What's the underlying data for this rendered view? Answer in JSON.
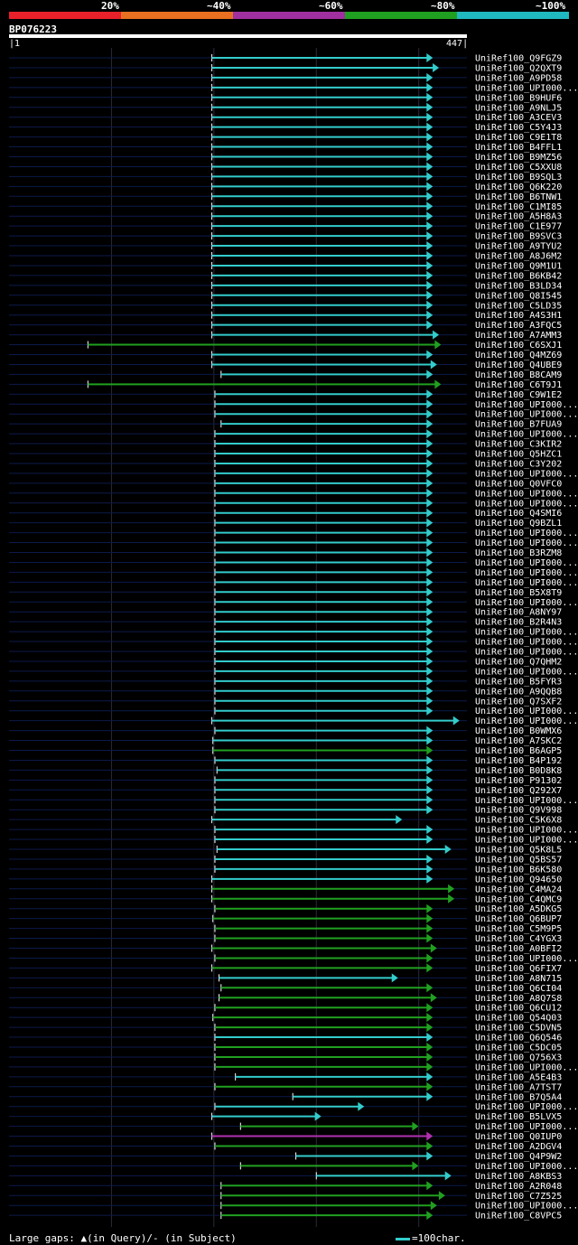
{
  "legend": {
    "labels": [
      "20%",
      "~40%",
      "~60%",
      "~80%",
      "~100%"
    ],
    "colors": [
      "#e8202a",
      "#e87020",
      "#a030a0",
      "#20a020",
      "#20b8c0"
    ]
  },
  "query": {
    "name": "BP076223",
    "start": "1",
    "end": "447"
  },
  "footer": {
    "large_gaps_prefix": "Large gaps:",
    "query_marker": "▲",
    "in_query": "(in Query)/",
    "subject_marker": "-",
    "in_subject": "(in Subject)",
    "scale_note": "=100char."
  },
  "chart_data": {
    "type": "alignment-overview",
    "query_length": 447,
    "gridlines": [
      100,
      200,
      300,
      400
    ],
    "legend": [
      "20%",
      "~40%",
      "~60%",
      "~80%",
      "~100%"
    ],
    "hits": [
      {
        "name": "UniRef100_Q9FGZ9",
        "start": 198,
        "end": 412,
        "color": "cyan"
      },
      {
        "name": "UniRef100_Q2QXT9",
        "start": 198,
        "end": 418,
        "color": "cyan"
      },
      {
        "name": "UniRef100_A9PD58",
        "start": 198,
        "end": 412,
        "color": "cyan"
      },
      {
        "name": "UniRef100_UPI000...",
        "start": 198,
        "end": 412,
        "color": "cyan"
      },
      {
        "name": "UniRef100_B9HUF6",
        "start": 198,
        "end": 412,
        "color": "cyan"
      },
      {
        "name": "UniRef100_A9NLJ5",
        "start": 198,
        "end": 412,
        "color": "cyan"
      },
      {
        "name": "UniRef100_A3CEV3",
        "start": 198,
        "end": 412,
        "color": "cyan"
      },
      {
        "name": "UniRef100_C5Y4J3",
        "start": 198,
        "end": 412,
        "color": "cyan"
      },
      {
        "name": "UniRef100_C9E1T8",
        "start": 198,
        "end": 412,
        "color": "cyan"
      },
      {
        "name": "UniRef100_B4FFL1",
        "start": 198,
        "end": 412,
        "color": "cyan"
      },
      {
        "name": "UniRef100_B9MZ56",
        "start": 198,
        "end": 412,
        "color": "cyan"
      },
      {
        "name": "UniRef100_C5XXU8",
        "start": 198,
        "end": 412,
        "color": "cyan"
      },
      {
        "name": "UniRef100_B9SQL3",
        "start": 198,
        "end": 412,
        "color": "cyan"
      },
      {
        "name": "UniRef100_Q6K220",
        "start": 198,
        "end": 412,
        "color": "cyan"
      },
      {
        "name": "UniRef100_B6TNW1",
        "start": 198,
        "end": 412,
        "color": "cyan"
      },
      {
        "name": "UniRef100_C1MI85",
        "start": 198,
        "end": 412,
        "color": "cyan"
      },
      {
        "name": "UniRef100_A5H8A3",
        "start": 198,
        "end": 412,
        "color": "cyan"
      },
      {
        "name": "UniRef100_C1E977",
        "start": 198,
        "end": 412,
        "color": "cyan"
      },
      {
        "name": "UniRef100_B9SVC3",
        "start": 198,
        "end": 412,
        "color": "cyan"
      },
      {
        "name": "UniRef100_A9TYU2",
        "start": 198,
        "end": 412,
        "color": "cyan"
      },
      {
        "name": "UniRef100_A8J6M2",
        "start": 198,
        "end": 412,
        "color": "cyan"
      },
      {
        "name": "UniRef100_Q9M1U1",
        "start": 198,
        "end": 412,
        "color": "cyan"
      },
      {
        "name": "UniRef100_B6KB42",
        "start": 198,
        "end": 412,
        "color": "cyan"
      },
      {
        "name": "UniRef100_B3LD34",
        "start": 198,
        "end": 412,
        "color": "cyan"
      },
      {
        "name": "UniRef100_Q8I545",
        "start": 198,
        "end": 412,
        "color": "cyan"
      },
      {
        "name": "UniRef100_C5LD35",
        "start": 198,
        "end": 412,
        "color": "cyan"
      },
      {
        "name": "UniRef100_A4S3H1",
        "start": 198,
        "end": 412,
        "color": "cyan"
      },
      {
        "name": "UniRef100_A3FQC5",
        "start": 198,
        "end": 412,
        "color": "cyan"
      },
      {
        "name": "UniRef100_A7AMM3",
        "start": 198,
        "end": 418,
        "color": "cyan"
      },
      {
        "name": "UniRef100_C6SXJ1",
        "start": 77,
        "end": 420,
        "color": "green"
      },
      {
        "name": "UniRef100_Q4MZ69",
        "start": 198,
        "end": 412,
        "color": "cyan"
      },
      {
        "name": "UniRef100_Q4UBE9",
        "start": 198,
        "end": 416,
        "color": "cyan"
      },
      {
        "name": "UniRef100_B8CAM9",
        "start": 207,
        "end": 412,
        "color": "cyan"
      },
      {
        "name": "UniRef100_C6T9J1",
        "start": 77,
        "end": 420,
        "color": "green"
      },
      {
        "name": "UniRef100_C9W1E2",
        "start": 201,
        "end": 412,
        "color": "cyan"
      },
      {
        "name": "UniRef100_UPI000...",
        "start": 201,
        "end": 412,
        "color": "cyan"
      },
      {
        "name": "UniRef100_UPI000...",
        "start": 201,
        "end": 412,
        "color": "cyan"
      },
      {
        "name": "UniRef100_B7FUA9",
        "start": 207,
        "end": 412,
        "color": "cyan"
      },
      {
        "name": "UniRef100_UPI000...",
        "start": 201,
        "end": 412,
        "color": "cyan"
      },
      {
        "name": "UniRef100_C3KIR2",
        "start": 201,
        "end": 412,
        "color": "cyan"
      },
      {
        "name": "UniRef100_Q5HZC1",
        "start": 201,
        "end": 412,
        "color": "cyan"
      },
      {
        "name": "UniRef100_C3Y202",
        "start": 201,
        "end": 412,
        "color": "cyan"
      },
      {
        "name": "UniRef100_UPI000...",
        "start": 201,
        "end": 412,
        "color": "cyan"
      },
      {
        "name": "UniRef100_Q0VFC0",
        "start": 201,
        "end": 412,
        "color": "cyan"
      },
      {
        "name": "UniRef100_UPI000...",
        "start": 201,
        "end": 412,
        "color": "cyan"
      },
      {
        "name": "UniRef100_UPI000...",
        "start": 201,
        "end": 412,
        "color": "cyan"
      },
      {
        "name": "UniRef100_Q4SMI6",
        "start": 201,
        "end": 412,
        "color": "cyan"
      },
      {
        "name": "UniRef100_Q9BZL1",
        "start": 201,
        "end": 412,
        "color": "cyan"
      },
      {
        "name": "UniRef100_UPI000...",
        "start": 201,
        "end": 412,
        "color": "cyan"
      },
      {
        "name": "UniRef100_UPI000...",
        "start": 201,
        "end": 412,
        "color": "cyan"
      },
      {
        "name": "UniRef100_B3RZM8",
        "start": 201,
        "end": 412,
        "color": "cyan"
      },
      {
        "name": "UniRef100_UPI000...",
        "start": 201,
        "end": 412,
        "color": "cyan"
      },
      {
        "name": "UniRef100_UPI000...",
        "start": 201,
        "end": 412,
        "color": "cyan"
      },
      {
        "name": "UniRef100_UPI000...",
        "start": 201,
        "end": 412,
        "color": "cyan"
      },
      {
        "name": "UniRef100_B5X8T9",
        "start": 201,
        "end": 412,
        "color": "cyan"
      },
      {
        "name": "UniRef100_UPI000...",
        "start": 201,
        "end": 412,
        "color": "cyan"
      },
      {
        "name": "UniRef100_A8NY97",
        "start": 201,
        "end": 412,
        "color": "cyan"
      },
      {
        "name": "UniRef100_B2R4N3",
        "start": 201,
        "end": 412,
        "color": "cyan"
      },
      {
        "name": "UniRef100_UPI000...",
        "start": 201,
        "end": 412,
        "color": "cyan"
      },
      {
        "name": "UniRef100_UPI000...",
        "start": 201,
        "end": 412,
        "color": "cyan"
      },
      {
        "name": "UniRef100_UPI000...",
        "start": 201,
        "end": 412,
        "color": "cyan"
      },
      {
        "name": "UniRef100_Q7QHM2",
        "start": 201,
        "end": 412,
        "color": "cyan"
      },
      {
        "name": "UniRef100_UPI000...",
        "start": 201,
        "end": 412,
        "color": "cyan"
      },
      {
        "name": "UniRef100_B5FYR3",
        "start": 201,
        "end": 412,
        "color": "cyan"
      },
      {
        "name": "UniRef100_A9QQB8",
        "start": 201,
        "end": 412,
        "color": "cyan"
      },
      {
        "name": "UniRef100_Q7SXF2",
        "start": 201,
        "end": 412,
        "color": "cyan"
      },
      {
        "name": "UniRef100_UPI000...",
        "start": 201,
        "end": 412,
        "color": "cyan"
      },
      {
        "name": "UniRef100_UPI000...",
        "start": 198,
        "end": 438,
        "color": "cyan"
      },
      {
        "name": "UniRef100_B0WMX6",
        "start": 201,
        "end": 412,
        "color": "cyan"
      },
      {
        "name": "UniRef100_A7SKC2",
        "start": 199,
        "end": 412,
        "color": "cyan"
      },
      {
        "name": "UniRef100_B6AGP5",
        "start": 199,
        "end": 412,
        "color": "green"
      },
      {
        "name": "UniRef100_B4P192",
        "start": 201,
        "end": 412,
        "color": "cyan"
      },
      {
        "name": "UniRef100_B0D8K8",
        "start": 203,
        "end": 412,
        "color": "cyan"
      },
      {
        "name": "UniRef100_P91302",
        "start": 201,
        "end": 412,
        "color": "cyan"
      },
      {
        "name": "UniRef100_Q292X7",
        "start": 201,
        "end": 412,
        "color": "cyan"
      },
      {
        "name": "UniRef100_UPI000...",
        "start": 201,
        "end": 412,
        "color": "cyan"
      },
      {
        "name": "UniRef100_Q9V998",
        "start": 201,
        "end": 412,
        "color": "cyan"
      },
      {
        "name": "UniRef100_C5K6X8",
        "start": 198,
        "end": 382,
        "color": "cyan"
      },
      {
        "name": "UniRef100_UPI000...",
        "start": 201,
        "end": 412,
        "color": "cyan"
      },
      {
        "name": "UniRef100_UPI000...",
        "start": 201,
        "end": 412,
        "color": "cyan"
      },
      {
        "name": "UniRef100_Q5K8L5",
        "start": 203,
        "end": 430,
        "color": "cyan"
      },
      {
        "name": "UniRef100_Q5BS57",
        "start": 201,
        "end": 412,
        "color": "cyan"
      },
      {
        "name": "UniRef100_B6K580",
        "start": 201,
        "end": 412,
        "color": "cyan"
      },
      {
        "name": "UniRef100_Q94650",
        "start": 198,
        "end": 412,
        "color": "cyan"
      },
      {
        "name": "UniRef100_C4MA24",
        "start": 198,
        "end": 433,
        "color": "green"
      },
      {
        "name": "UniRef100_C4QMC9",
        "start": 198,
        "end": 433,
        "color": "green"
      },
      {
        "name": "UniRef100_A5DKG5",
        "start": 201,
        "end": 412,
        "color": "green"
      },
      {
        "name": "UniRef100_Q6BUP7",
        "start": 199,
        "end": 412,
        "color": "green"
      },
      {
        "name": "UniRef100_C5M9P5",
        "start": 201,
        "end": 412,
        "color": "green"
      },
      {
        "name": "UniRef100_C4YGX3",
        "start": 201,
        "end": 412,
        "color": "green"
      },
      {
        "name": "UniRef100_A0BFI2",
        "start": 198,
        "end": 416,
        "color": "green"
      },
      {
        "name": "UniRef100_UPI000...",
        "start": 201,
        "end": 412,
        "color": "green"
      },
      {
        "name": "UniRef100_Q6FIX7",
        "start": 198,
        "end": 412,
        "color": "green"
      },
      {
        "name": "UniRef100_A8N715",
        "start": 205,
        "end": 378,
        "color": "cyan"
      },
      {
        "name": "UniRef100_Q6CI04",
        "start": 207,
        "end": 412,
        "color": "green"
      },
      {
        "name": "UniRef100_A8Q7S8",
        "start": 205,
        "end": 416,
        "color": "green"
      },
      {
        "name": "UniRef100_Q6CU12",
        "start": 201,
        "end": 412,
        "color": "green"
      },
      {
        "name": "UniRef100_Q54Q03",
        "start": 199,
        "end": 412,
        "color": "green"
      },
      {
        "name": "UniRef100_C5DVN5",
        "start": 201,
        "end": 412,
        "color": "green"
      },
      {
        "name": "UniRef100_Q6Q546",
        "start": 201,
        "end": 412,
        "color": "cyan"
      },
      {
        "name": "UniRef100_C5DC05",
        "start": 201,
        "end": 412,
        "color": "green"
      },
      {
        "name": "UniRef100_Q756X3",
        "start": 201,
        "end": 412,
        "color": "green"
      },
      {
        "name": "UniRef100_UPI000...",
        "start": 201,
        "end": 412,
        "color": "green"
      },
      {
        "name": "UniRef100_A5E4B3",
        "start": 221,
        "end": 412,
        "color": "cyan"
      },
      {
        "name": "UniRef100_A7TST7",
        "start": 201,
        "end": 412,
        "color": "green"
      },
      {
        "name": "UniRef100_B7Q5A4",
        "start": 277,
        "end": 412,
        "color": "cyan"
      },
      {
        "name": "UniRef100_UPI000...",
        "start": 201,
        "end": 345,
        "color": "cyan"
      },
      {
        "name": "UniRef100_B5LVX5",
        "start": 198,
        "end": 303,
        "color": "cyan"
      },
      {
        "name": "UniRef100_UPI000...",
        "start": 226,
        "end": 398,
        "color": "green"
      },
      {
        "name": "UniRef100_Q0IUP0",
        "start": 198,
        "end": 412,
        "color": "magenta"
      },
      {
        "name": "UniRef100_A2DGV4",
        "start": 201,
        "end": 412,
        "color": "green"
      },
      {
        "name": "UniRef100_Q4P9W2",
        "start": 280,
        "end": 412,
        "color": "cyan"
      },
      {
        "name": "UniRef100_UPI000...",
        "start": 226,
        "end": 398,
        "color": "green"
      },
      {
        "name": "UniRef100_A8KBS3",
        "start": 300,
        "end": 430,
        "color": "cyan"
      },
      {
        "name": "UniRef100_A2R048",
        "start": 207,
        "end": 412,
        "color": "green"
      },
      {
        "name": "UniRef100_C7Z525",
        "start": 207,
        "end": 424,
        "color": "green"
      },
      {
        "name": "UniRef100_UPI000...",
        "start": 207,
        "end": 416,
        "color": "green"
      },
      {
        "name": "UniRef100_C8VPC5",
        "start": 207,
        "end": 412,
        "color": "green"
      }
    ]
  }
}
